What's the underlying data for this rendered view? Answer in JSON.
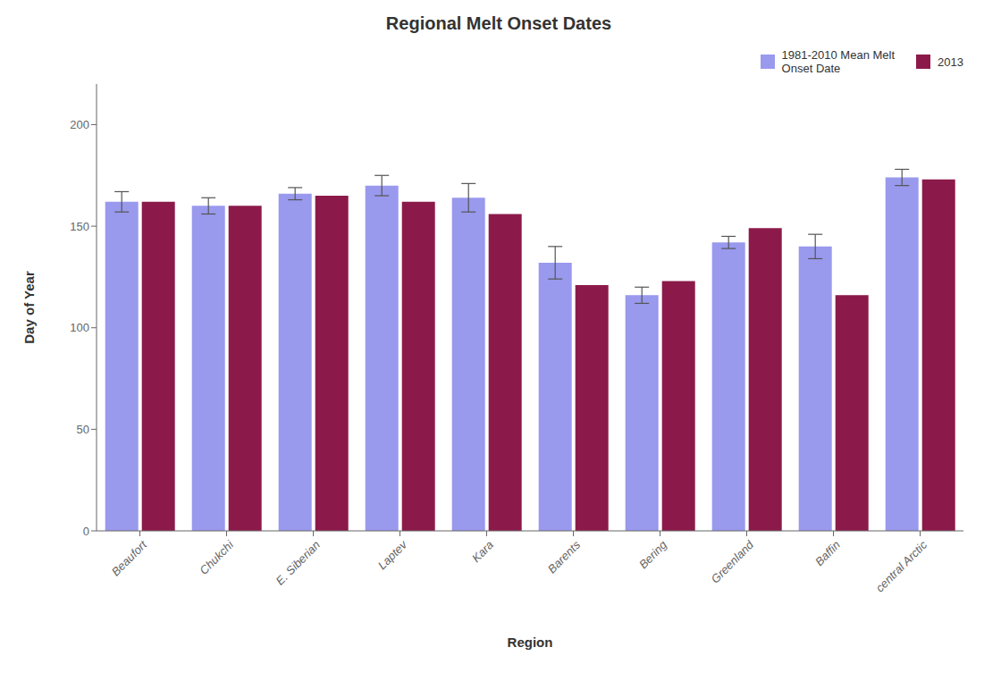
{
  "chart_data": {
    "type": "bar",
    "title": "Regional Melt Onset Dates",
    "xlabel": "Region",
    "ylabel": "Day of Year",
    "categories": [
      "Beaufort",
      "Chukchi",
      "E. Siberian",
      "Laptev",
      "Kara",
      "Barents",
      "Bering",
      "Greenland",
      "Baffin",
      "central Arctic"
    ],
    "series": [
      {
        "name": "1981-2010 Mean Melt\nOnset Date",
        "color": "#9999ee",
        "values": [
          162,
          160,
          166,
          170,
          164,
          132,
          116,
          142,
          140,
          174
        ],
        "errors": [
          5,
          4,
          3,
          5,
          7,
          8,
          4,
          3,
          6,
          4
        ]
      },
      {
        "name": "2013",
        "color": "#8b1a4a",
        "values": [
          162,
          160,
          165,
          162,
          156,
          121,
          123,
          149,
          116,
          173
        ]
      }
    ],
    "ylim": [
      0,
      220
    ],
    "yticks": [
      0,
      50,
      100,
      150,
      200
    ],
    "grid": false,
    "legend": "upper right"
  }
}
